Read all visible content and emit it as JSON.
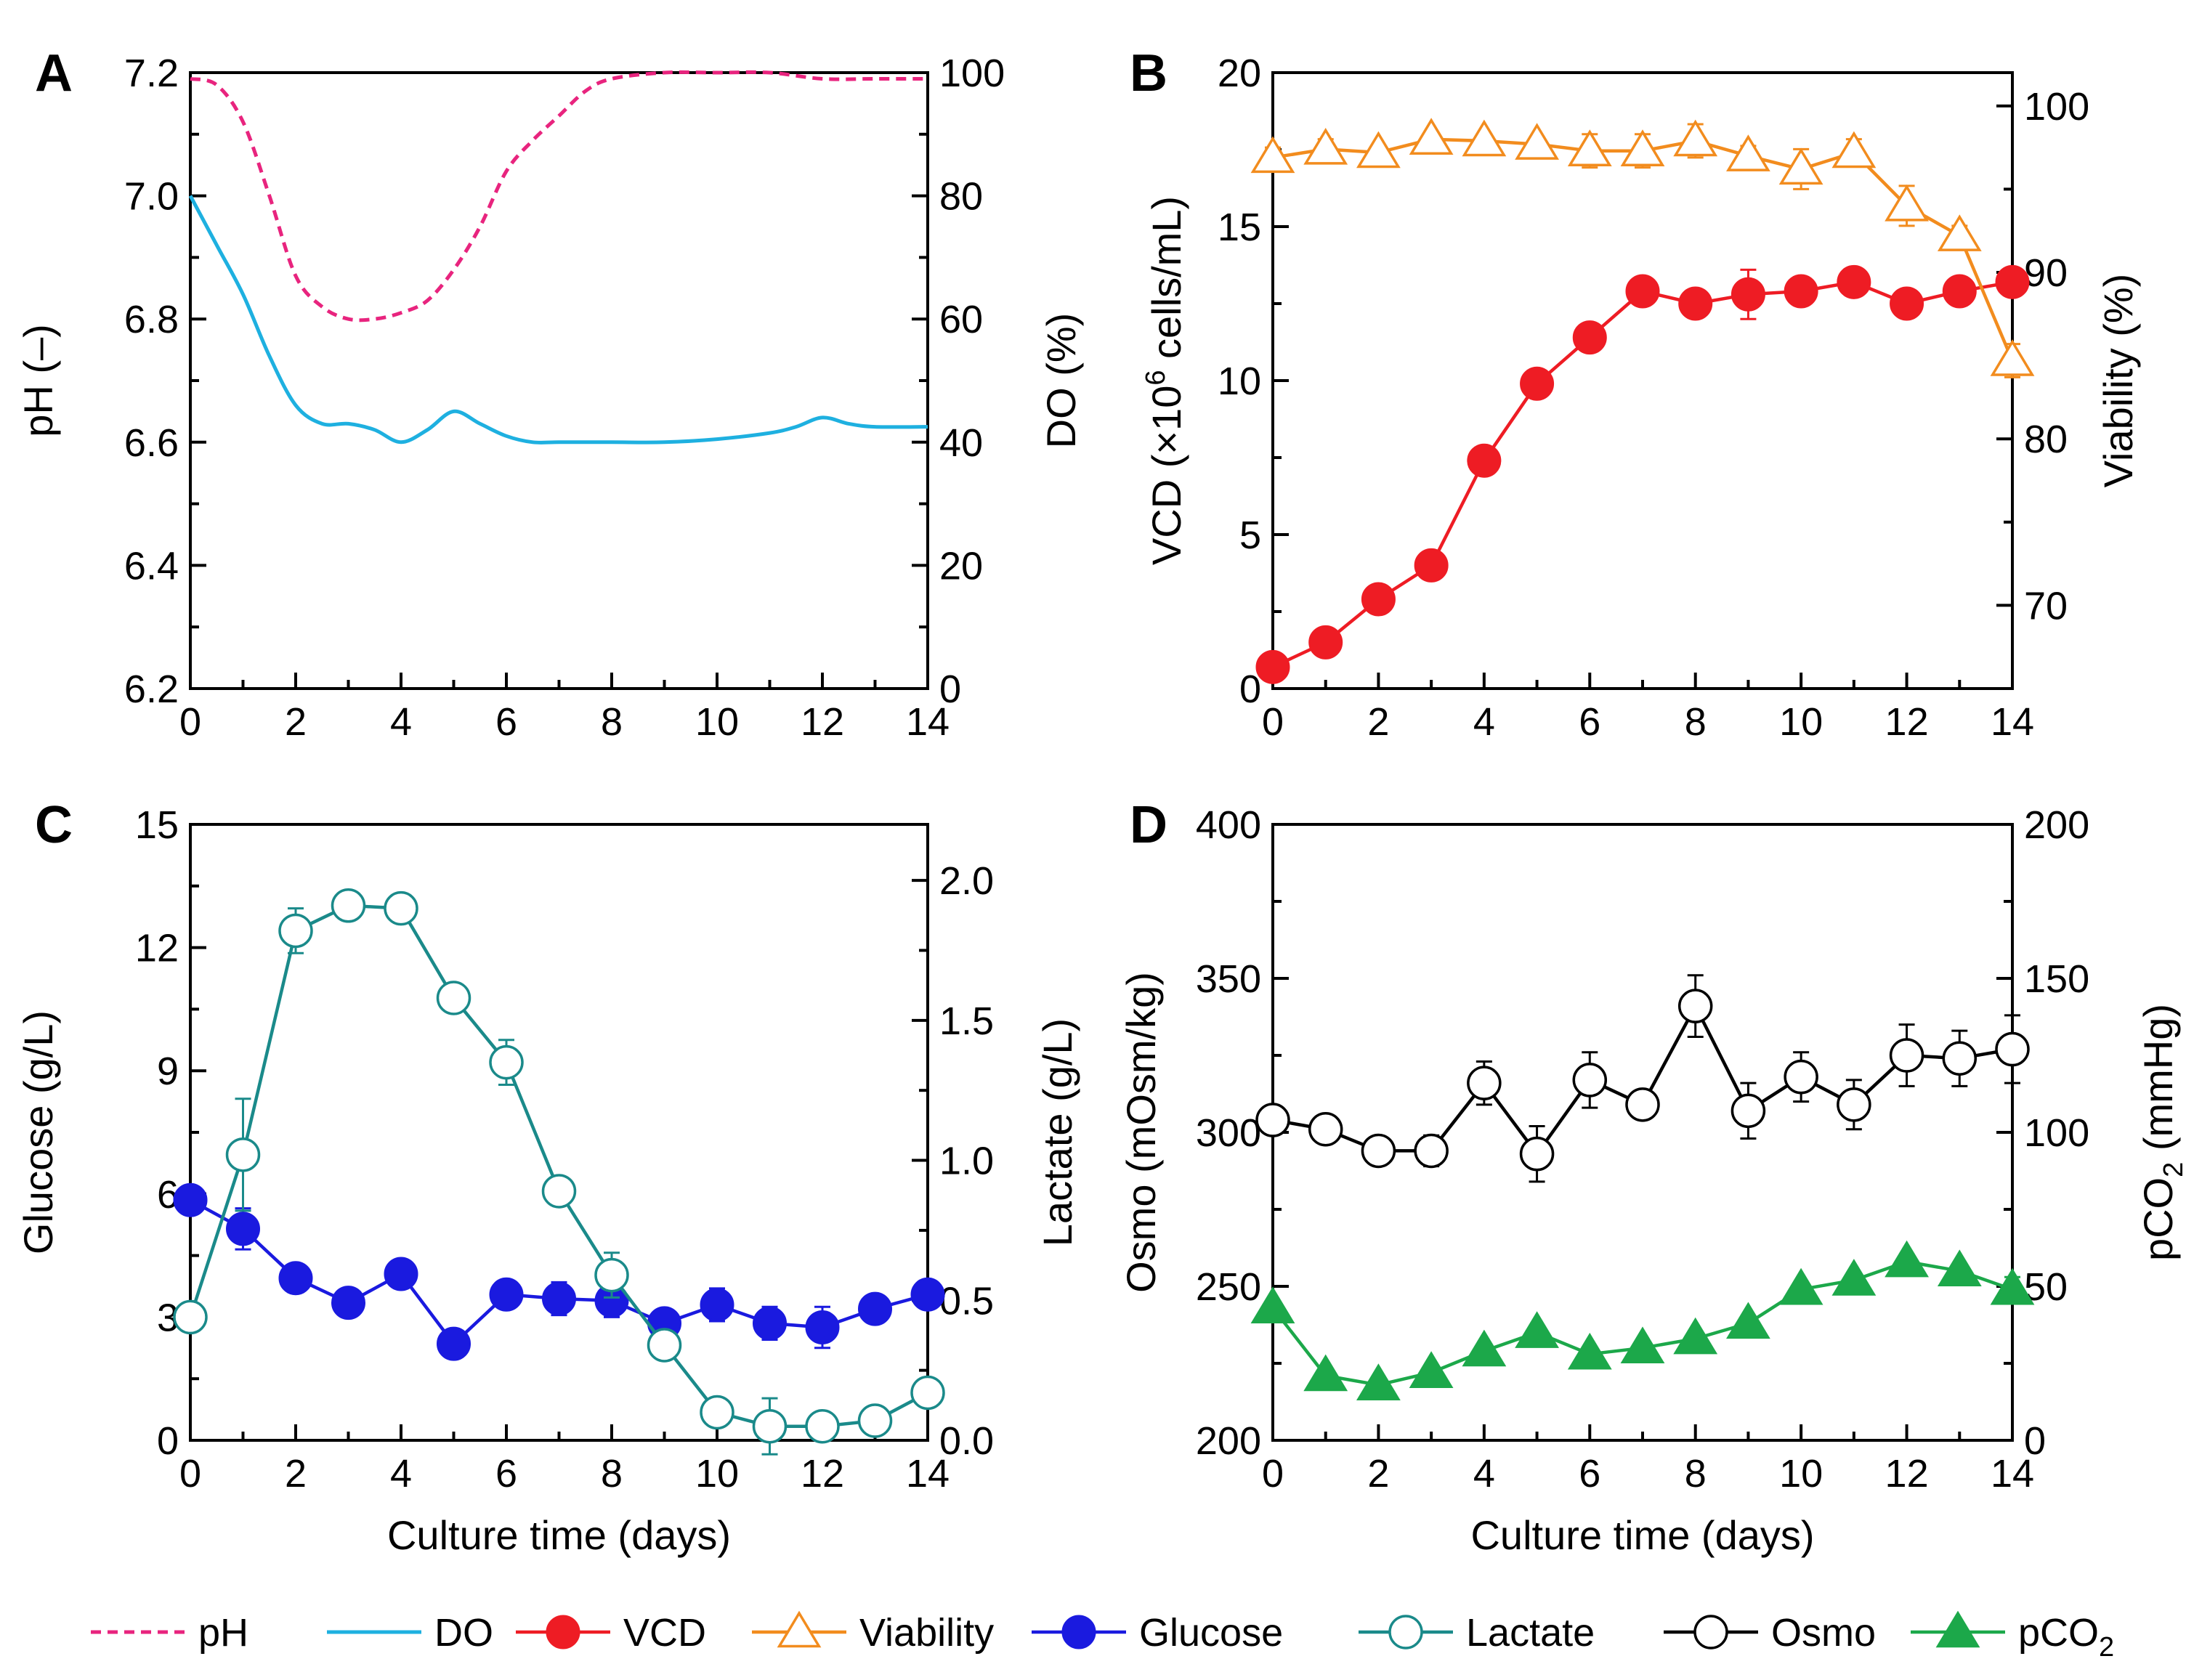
{
  "chart_data": [
    {
      "panel": "A",
      "type": "line",
      "xlabel": "",
      "ylabel": "pH (–)",
      "y2label": "DO (%)",
      "xlim": [
        0,
        14
      ],
      "xticks": [
        0,
        2,
        4,
        6,
        8,
        10,
        12,
        14
      ],
      "ylim": [
        6.2,
        7.2
      ],
      "yticks": [
        "6.2",
        "6.4",
        "6.6",
        "6.8",
        "7.0",
        "7.2"
      ],
      "y2lim": [
        0,
        100
      ],
      "y2ticks": [
        "0",
        "20",
        "40",
        "60",
        "80",
        "100"
      ],
      "series": [
        {
          "name": "pH",
          "axis": "left",
          "color": "#e8247e",
          "dash": true,
          "x": [
            0,
            0.5,
            1,
            1.5,
            2,
            2.5,
            3,
            3.5,
            4,
            4.5,
            5,
            5.5,
            6,
            6.5,
            7,
            7.5,
            8,
            9,
            10,
            11,
            12,
            13,
            14
          ],
          "y": [
            7.19,
            7.18,
            7.12,
            7.0,
            6.87,
            6.82,
            6.8,
            6.8,
            6.81,
            6.83,
            6.88,
            6.95,
            7.04,
            7.09,
            7.13,
            7.17,
            7.19,
            7.2,
            7.2,
            7.2,
            7.19,
            7.19,
            7.19
          ]
        },
        {
          "name": "DO",
          "axis": "right",
          "color": "#1eb0e0",
          "dash": false,
          "x": [
            0,
            0.5,
            1,
            1.5,
            2,
            2.5,
            3,
            3.5,
            4,
            4.5,
            5,
            5.5,
            6,
            6.5,
            7,
            8,
            9,
            10,
            11,
            11.5,
            12,
            12.5,
            13,
            14
          ],
          "y": [
            80,
            72,
            64,
            54,
            46,
            43,
            43,
            42,
            40,
            42,
            45,
            43,
            41,
            40,
            40,
            40,
            40,
            40.5,
            41.5,
            42.5,
            44,
            43,
            42.5,
            42.5
          ]
        }
      ]
    },
    {
      "panel": "B",
      "type": "line",
      "xlabel": "",
      "ylabel": "VCD (×10",
      "ylabel_sup": "6",
      "ylabel_tail": " cells/mL)",
      "y2label": "Viability (%)",
      "xlim": [
        0,
        14
      ],
      "xticks": [
        0,
        2,
        4,
        6,
        8,
        10,
        12,
        14
      ],
      "ylim": [
        0,
        20
      ],
      "yticks": [
        "0",
        "5",
        "10",
        "15",
        "20"
      ],
      "y2lim": [
        65,
        102
      ],
      "y2ticks": [
        "70",
        "80",
        "90",
        "100"
      ],
      "series": [
        {
          "name": "VCD",
          "axis": "left",
          "color": "#ee1c24",
          "marker": "filled-circle",
          "x": [
            0,
            1,
            2,
            3,
            4,
            5,
            6,
            7,
            8,
            9,
            10,
            11,
            12,
            13,
            14
          ],
          "y": [
            0.7,
            1.5,
            2.9,
            4.0,
            7.4,
            9.9,
            11.4,
            12.9,
            12.5,
            12.8,
            12.9,
            13.2,
            12.5,
            12.9,
            13.2
          ],
          "err": [
            0.1,
            0.1,
            0.1,
            0.1,
            0.15,
            0.2,
            0.4,
            0.2,
            0.3,
            0.8,
            0.3,
            0.3,
            0.4,
            0.3,
            0.4
          ]
        },
        {
          "name": "Viability",
          "axis": "right",
          "color": "#f28c1e",
          "marker": "open-triangle",
          "x": [
            0,
            1,
            2,
            3,
            4,
            5,
            6,
            7,
            8,
            9,
            10,
            11,
            12,
            13,
            14
          ],
          "y": [
            96.9,
            97.4,
            97.2,
            98.0,
            97.9,
            97.7,
            97.3,
            97.3,
            97.9,
            97.0,
            96.2,
            97.2,
            94.0,
            92.2,
            84.7
          ],
          "err": [
            0.6,
            0.6,
            0.4,
            0.4,
            0.4,
            0.4,
            1.0,
            1.0,
            1.0,
            0.6,
            1.2,
            0.8,
            1.2,
            0.6,
            1.0
          ]
        }
      ]
    },
    {
      "panel": "C",
      "type": "line",
      "xlabel": "Culture time (days)",
      "ylabel": "Glucose (g/L)",
      "y2label": "Lactate (g/L)",
      "xlim": [
        0,
        14
      ],
      "xticks": [
        0,
        2,
        4,
        6,
        8,
        10,
        12,
        14
      ],
      "ylim": [
        0,
        15
      ],
      "yticks": [
        "0",
        "3",
        "6",
        "9",
        "12",
        "15"
      ],
      "y2lim": [
        0,
        2.2
      ],
      "y2ticks": [
        "0.0",
        "0.5",
        "1.0",
        "1.5",
        "2.0"
      ],
      "series": [
        {
          "name": "Glucose",
          "axis": "left",
          "color": "#1a1adf",
          "marker": "filled-circle",
          "x": [
            0,
            1,
            2,
            3,
            4,
            5,
            6,
            7,
            8,
            9,
            10,
            11,
            12,
            13,
            14
          ],
          "y": [
            5.85,
            5.15,
            3.95,
            3.35,
            4.05,
            2.35,
            3.55,
            3.45,
            3.4,
            2.85,
            3.3,
            2.85,
            2.75,
            3.2,
            3.55
          ],
          "err": [
            0.2,
            0.5,
            0.3,
            0.2,
            0.15,
            0.2,
            0.3,
            0.4,
            0.4,
            0.2,
            0.4,
            0.4,
            0.5,
            0.3,
            0.2
          ]
        },
        {
          "name": "Lactate",
          "axis": "right",
          "color": "#1a8a8a",
          "marker": "open-circle",
          "x": [
            0,
            1,
            2,
            3,
            4,
            5,
            6,
            7,
            8,
            9,
            10,
            11,
            12,
            13,
            14
          ],
          "y": [
            0.44,
            1.02,
            1.82,
            1.91,
            1.9,
            1.58,
            1.35,
            0.89,
            0.59,
            0.34,
            0.1,
            0.05,
            0.05,
            0.07,
            0.17
          ],
          "err": [
            0.05,
            0.2,
            0.08,
            0.03,
            0.02,
            0.02,
            0.08,
            0.03,
            0.08,
            0.02,
            0.02,
            0.1,
            0.02,
            0.02,
            0.02
          ]
        }
      ]
    },
    {
      "panel": "D",
      "type": "line",
      "xlabel": "Culture time (days)",
      "ylabel": "Osmo (mOsm/kg)",
      "y2label": "pCO",
      "y2label_sub": "2",
      "y2label_tail": " (mmHg)",
      "xlim": [
        0,
        14
      ],
      "xticks": [
        0,
        2,
        4,
        6,
        8,
        10,
        12,
        14
      ],
      "ylim": [
        200,
        400
      ],
      "yticks": [
        "200",
        "250",
        "300",
        "350",
        "400"
      ],
      "y2lim": [
        0,
        200
      ],
      "y2ticks": [
        "0",
        "50",
        "100",
        "150",
        "200"
      ],
      "series": [
        {
          "name": "Osmo",
          "axis": "left",
          "color": "#000000",
          "marker": "open-circle",
          "x": [
            0,
            1,
            2,
            3,
            4,
            5,
            6,
            7,
            8,
            9,
            10,
            11,
            12,
            13,
            14
          ],
          "y": [
            304,
            301,
            294,
            294,
            316,
            293,
            317,
            309,
            341,
            307,
            318,
            309,
            325,
            324,
            327
          ],
          "err": [
            3,
            4,
            3,
            5,
            7,
            9,
            9,
            3,
            10,
            9,
            8,
            8,
            10,
            9,
            11
          ]
        },
        {
          "name": "pCO2",
          "axis": "right",
          "color": "#1ca84a",
          "marker": "filled-triangle",
          "x": [
            0,
            1,
            2,
            3,
            4,
            5,
            6,
            7,
            8,
            9,
            10,
            11,
            12,
            13,
            14
          ],
          "y": [
            43,
            21,
            18,
            22,
            29,
            35,
            28,
            30,
            33,
            38,
            49,
            52,
            58,
            55,
            49
          ],
          "err": [
            2,
            1.5,
            1.5,
            1.5,
            1.5,
            2,
            1.5,
            1.5,
            1.5,
            1.5,
            2,
            2,
            2,
            2,
            4
          ]
        }
      ]
    }
  ],
  "legend": {
    "items": [
      {
        "label": "pH",
        "color": "#e8247e",
        "style": "dashed"
      },
      {
        "label": "DO",
        "color": "#1eb0e0",
        "style": "solid"
      },
      {
        "label": "VCD",
        "color": "#ee1c24",
        "style": "filled-circle"
      },
      {
        "label": "Viability",
        "color": "#f28c1e",
        "style": "open-triangle"
      },
      {
        "label": "Glucose",
        "color": "#1a1adf",
        "style": "filled-circle"
      },
      {
        "label": "Lactate",
        "color": "#1a8a8a",
        "style": "open-circle"
      },
      {
        "label": "Osmo",
        "color": "#000000",
        "style": "open-circle"
      },
      {
        "label": "pCO",
        "sub": "2",
        "color": "#1ca84a",
        "style": "filled-triangle"
      }
    ]
  }
}
